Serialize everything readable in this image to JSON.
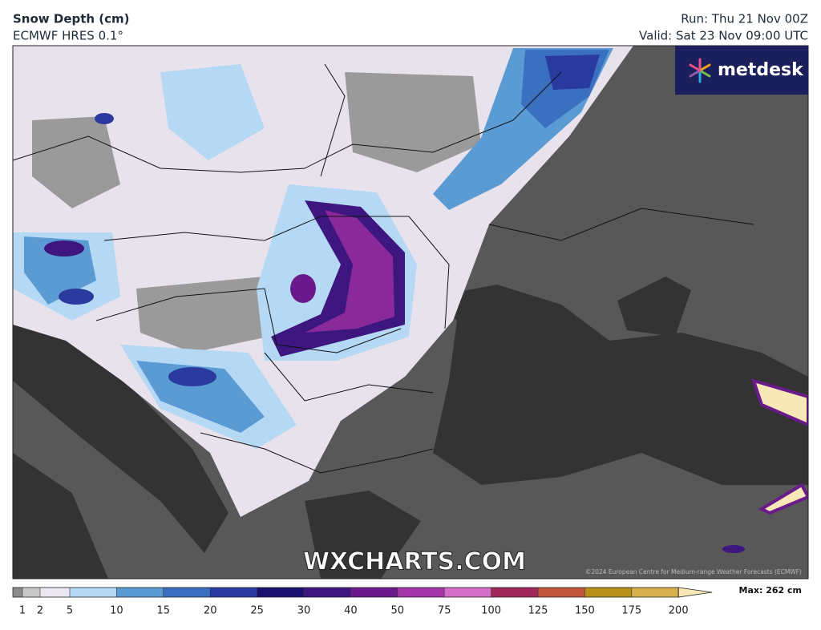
{
  "header": {
    "title": "Snow Depth (cm)",
    "subtitle": "ECMWF HRES 0.1°",
    "run": "Run: Thu 21 Nov 00Z",
    "valid": "Valid: Sat 23 Nov 09:00 UTC"
  },
  "logo": "metdesk",
  "watermark": "WXCHARTS.COM",
  "credit": "©2024 European Centre for Medium-range Weather Forecasts (ECMWF)",
  "legend": {
    "ticks": [
      1,
      2,
      5,
      10,
      15,
      20,
      25,
      30,
      40,
      50,
      75,
      100,
      125,
      150,
      175,
      200
    ],
    "colors": [
      "#8a8a8a",
      "#c8c8c8",
      "#ece6f0",
      "#b5d8f5",
      "#5a9bd4",
      "#3b6fc0",
      "#2a3a9e",
      "#1a1070",
      "#3d1680",
      "#6a1a8a",
      "#a235a8",
      "#d46fc8",
      "#a0285a",
      "#c0553a",
      "#b8901a",
      "#d8b050",
      "#f8e8b8"
    ],
    "max_label": "Max: 262 cm"
  }
}
